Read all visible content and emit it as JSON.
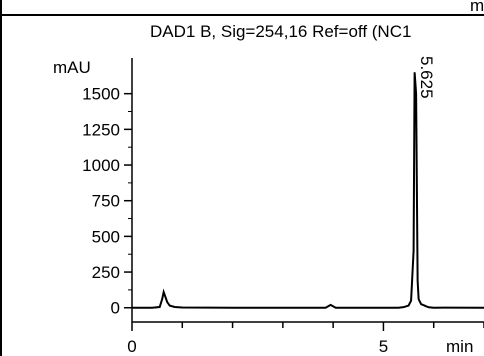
{
  "chart_data": {
    "type": "line",
    "title": "DAD1 B, Sig=254,16 Ref=off (NC1",
    "top_clipped_text": "min",
    "ylabel": "mAU",
    "xlabel": "min",
    "xlim": [
      0,
      7
    ],
    "ylim": [
      -100,
      1750
    ],
    "x_ticks_major": [
      0,
      5
    ],
    "y_ticks": [
      0,
      250,
      500,
      750,
      1000,
      1250,
      1500
    ],
    "peak_labels": [
      {
        "x": 5.625,
        "text": "5.625"
      }
    ],
    "series": [
      {
        "points": [
          [
            0.0,
            0
          ],
          [
            0.4,
            0
          ],
          [
            0.55,
            5
          ],
          [
            0.6,
            60
          ],
          [
            0.63,
            110
          ],
          [
            0.66,
            80
          ],
          [
            0.7,
            40
          ],
          [
            0.75,
            15
          ],
          [
            0.85,
            5
          ],
          [
            1.0,
            2
          ],
          [
            2.0,
            0
          ],
          [
            3.0,
            0
          ],
          [
            3.85,
            0
          ],
          [
            3.95,
            20
          ],
          [
            4.05,
            0
          ],
          [
            4.6,
            0
          ],
          [
            5.3,
            0
          ],
          [
            5.4,
            4
          ],
          [
            5.5,
            15
          ],
          [
            5.55,
            50
          ],
          [
            5.6,
            400
          ],
          [
            5.62,
            1650
          ],
          [
            5.65,
            1500
          ],
          [
            5.68,
            190
          ],
          [
            5.7,
            60
          ],
          [
            5.75,
            25
          ],
          [
            5.8,
            18
          ],
          [
            5.85,
            10
          ],
          [
            5.9,
            3
          ],
          [
            6.0,
            0
          ],
          [
            6.2,
            1
          ],
          [
            7.0,
            0
          ]
        ]
      }
    ],
    "grid": false
  }
}
